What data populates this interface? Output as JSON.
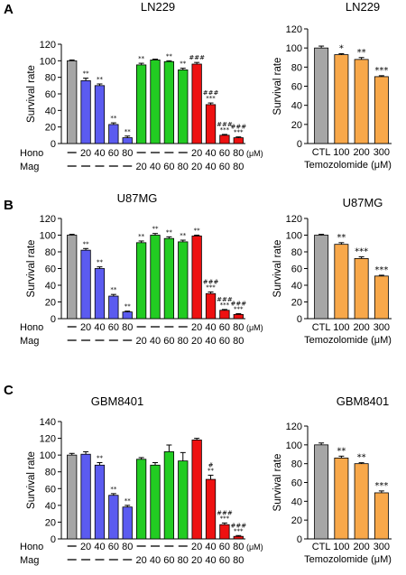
{
  "colors": {
    "control": "#a6a6a6",
    "hono": "#5b5bf0",
    "mag": "#22cc22",
    "combo": "#ee1111",
    "tmz": "#f8a84a"
  },
  "chart_data": [
    {
      "panel": "A",
      "type": "bar",
      "title": "LN229",
      "ylabel": "Survival rate",
      "ylim": [
        0,
        120
      ],
      "yticks": [
        0,
        20,
        40,
        60,
        80,
        100,
        120
      ],
      "row_labels": [
        "Hono",
        "Mag"
      ],
      "unit": "(μM)",
      "hono": [
        "—",
        "20",
        "40",
        "60",
        "80",
        "—",
        "—",
        "—",
        "—",
        "20",
        "40",
        "60",
        "80"
      ],
      "mag": [
        "—",
        "—",
        "—",
        "—",
        "—",
        "20",
        "40",
        "60",
        "80",
        "20",
        "40",
        "60",
        "80"
      ],
      "groups": [
        "control",
        "hono",
        "hono",
        "hono",
        "hono",
        "mag",
        "mag",
        "mag",
        "mag",
        "combo",
        "combo",
        "combo",
        "combo"
      ],
      "values": [
        100,
        76,
        70,
        23,
        7,
        95,
        101,
        99,
        89,
        96,
        47,
        10,
        7
      ],
      "errors": [
        1,
        3,
        2,
        2,
        2,
        2,
        1,
        1,
        2,
        2,
        2,
        1,
        1
      ],
      "annot": [
        [],
        [
          "**"
        ],
        [
          "**"
        ],
        [
          "**"
        ],
        [
          "**"
        ],
        [
          "**"
        ],
        [],
        [
          "**"
        ],
        [
          "**"
        ],
        [
          "###"
        ],
        [
          "###",
          "***"
        ],
        [
          "###",
          "***"
        ],
        [
          "###",
          "***"
        ]
      ]
    },
    {
      "panel": "A",
      "type": "bar",
      "title": "LN229",
      "ylabel": "Survival rate",
      "ylim": [
        0,
        120
      ],
      "yticks": [
        0,
        20,
        40,
        60,
        80,
        100,
        120
      ],
      "categories": [
        "CTL",
        "100",
        "200",
        "300"
      ],
      "xlabel": "Temozolomide (μM)",
      "groups": [
        "control",
        "tmz",
        "tmz",
        "tmz"
      ],
      "values": [
        100,
        93,
        88,
        70
      ],
      "errors": [
        2,
        1,
        2,
        1
      ],
      "annot": [
        [],
        [
          "*"
        ],
        [
          "**"
        ],
        [
          "***"
        ]
      ]
    },
    {
      "panel": "B",
      "type": "bar",
      "title": "U87MG",
      "ylabel": "Survival rate",
      "ylim": [
        0,
        120
      ],
      "yticks": [
        0,
        20,
        40,
        60,
        80,
        100,
        120
      ],
      "row_labels": [
        "Hono",
        "Mag"
      ],
      "unit": "(μM)",
      "hono": [
        "—",
        "20",
        "40",
        "60",
        "80",
        "—",
        "—",
        "—",
        "—",
        "20",
        "40",
        "60",
        "80"
      ],
      "mag": [
        "—",
        "—",
        "—",
        "—",
        "—",
        "20",
        "40",
        "60",
        "80",
        "20",
        "40",
        "60",
        "80"
      ],
      "groups": [
        "control",
        "hono",
        "hono",
        "hono",
        "hono",
        "mag",
        "mag",
        "mag",
        "mag",
        "combo",
        "combo",
        "combo",
        "combo"
      ],
      "values": [
        100,
        82,
        60,
        27,
        8,
        91,
        100,
        96,
        92,
        99,
        30,
        10,
        5
      ],
      "errors": [
        1,
        2,
        2,
        2,
        1,
        2,
        2,
        2,
        2,
        1,
        2,
        1,
        1
      ],
      "annot": [
        [],
        [
          "**"
        ],
        [
          "**"
        ],
        [
          "**"
        ],
        [
          "**"
        ],
        [
          "**"
        ],
        [
          "**"
        ],
        [
          "**"
        ],
        [
          "**"
        ],
        [
          "**"
        ],
        [
          "###",
          "***"
        ],
        [
          "###",
          "***"
        ],
        [
          "###",
          "***"
        ]
      ]
    },
    {
      "panel": "B",
      "type": "bar",
      "title": "U87MG",
      "ylabel": "Survival rate",
      "ylim": [
        0,
        120
      ],
      "yticks": [
        0,
        20,
        40,
        60,
        80,
        100,
        120
      ],
      "categories": [
        "CTL",
        "100",
        "200",
        "300"
      ],
      "xlabel": "Temozolomide (μM)",
      "groups": [
        "control",
        "tmz",
        "tmz",
        "tmz"
      ],
      "values": [
        100,
        89,
        72,
        51
      ],
      "errors": [
        1,
        2,
        2,
        1
      ],
      "annot": [
        [],
        [
          "**"
        ],
        [
          "***"
        ],
        [
          "***"
        ]
      ]
    },
    {
      "panel": "C",
      "type": "bar",
      "title": "GBM8401",
      "ylabel": "Survival rate",
      "ylim": [
        0,
        140
      ],
      "yticks": [
        0,
        20,
        40,
        60,
        80,
        100,
        120,
        140
      ],
      "row_labels": [
        "Hono",
        "Mag"
      ],
      "unit": "(μM)",
      "hono": [
        "—",
        "20",
        "40",
        "60",
        "80",
        "—",
        "—",
        "—",
        "—",
        "20",
        "40",
        "60",
        "80"
      ],
      "mag": [
        "—",
        "—",
        "—",
        "—",
        "—",
        "20",
        "40",
        "60",
        "80",
        "20",
        "40",
        "60",
        "80"
      ],
      "groups": [
        "control",
        "hono",
        "hono",
        "hono",
        "hono",
        "mag",
        "mag",
        "mag",
        "mag",
        "combo",
        "combo",
        "combo",
        "combo"
      ],
      "values": [
        100,
        101,
        88,
        52,
        38,
        95,
        88,
        104,
        93,
        118,
        71,
        17,
        3
      ],
      "errors": [
        2,
        3,
        3,
        2,
        2,
        2,
        3,
        8,
        10,
        2,
        5,
        2,
        1
      ],
      "annot": [
        [],
        [],
        [
          "**"
        ],
        [
          "**"
        ],
        [
          "**"
        ],
        [],
        [],
        [],
        [],
        [],
        [
          "#",
          "**"
        ],
        [
          "###",
          "***"
        ],
        [
          "###",
          "***"
        ]
      ]
    },
    {
      "panel": "C",
      "type": "bar",
      "title": "GBM8401",
      "ylabel": "Survival rate",
      "ylim": [
        0,
        120
      ],
      "yticks": [
        0,
        20,
        40,
        60,
        80,
        100,
        120
      ],
      "categories": [
        "CTL",
        "100",
        "200",
        "300"
      ],
      "xlabel": "Temozolomide (μM)",
      "groups": [
        "control",
        "tmz",
        "tmz",
        "tmz"
      ],
      "values": [
        100,
        86,
        80,
        49
      ],
      "errors": [
        2,
        2,
        1,
        2
      ],
      "annot": [
        [],
        [
          "**"
        ],
        [
          "**"
        ],
        [
          "***"
        ]
      ]
    }
  ]
}
